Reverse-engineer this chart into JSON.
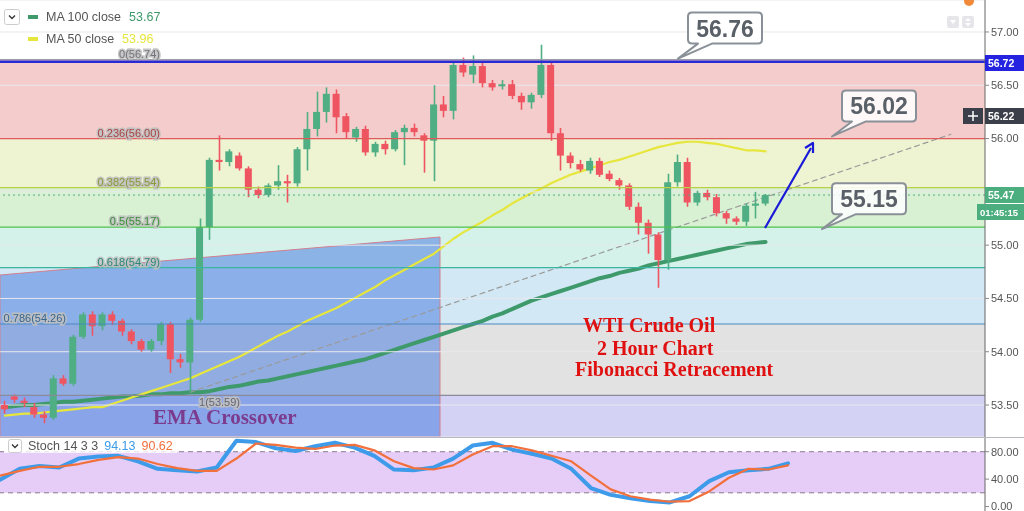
{
  "chart_data": [
    {
      "type": "candlestick",
      "title": "WTI Crude Oil",
      "subtitle": "2 Hour Chart",
      "categories": [
        null,
        null,
        null,
        null,
        null,
        null,
        null,
        null,
        null,
        null,
        null,
        null,
        null,
        null,
        null,
        null,
        null,
        null,
        null,
        null,
        null,
        null,
        null,
        null,
        null,
        null,
        null,
        null,
        null,
        null,
        null,
        null,
        null,
        null,
        null,
        null,
        null,
        null,
        null,
        null,
        null,
        null,
        null,
        null,
        null,
        null,
        null,
        null,
        null,
        null,
        null,
        null,
        null,
        null,
        null,
        null,
        null,
        null,
        null,
        null,
        null,
        null,
        null,
        null,
        null,
        null,
        null,
        null,
        null,
        null,
        null,
        null,
        null,
        null,
        null,
        null,
        null,
        null,
        null,
        null,
        null,
        null,
        null,
        null,
        null,
        null,
        null,
        null,
        null,
        null,
        null,
        null,
        null,
        null,
        null,
        null,
        null,
        null,
        null,
        null,
        null
      ],
      "ohlc": [
        [
          53.5,
          53.54,
          53.42,
          53.46
        ],
        [
          53.58,
          53.6,
          53.52,
          53.55
        ],
        [
          53.54,
          53.57,
          53.48,
          53.52
        ],
        [
          53.48,
          53.52,
          53.38,
          53.41
        ],
        [
          53.41,
          53.44,
          53.33,
          53.38
        ],
        [
          53.38,
          53.78,
          53.36,
          53.75
        ],
        [
          53.75,
          53.78,
          53.68,
          53.7
        ],
        [
          53.7,
          54.16,
          53.68,
          54.14
        ],
        [
          54.14,
          54.37,
          54.12,
          54.35
        ],
        [
          54.35,
          54.38,
          54.15,
          54.24
        ],
        [
          54.24,
          54.37,
          54.2,
          54.35
        ],
        [
          54.35,
          54.38,
          54.25,
          54.29
        ],
        [
          54.29,
          54.31,
          54.15,
          54.19
        ],
        [
          54.19,
          54.21,
          54.07,
          54.1
        ],
        [
          54.1,
          54.12,
          54.0,
          54.02
        ],
        [
          54.02,
          54.12,
          54.0,
          54.1
        ],
        [
          54.1,
          54.28,
          54.06,
          54.26
        ],
        [
          54.26,
          54.28,
          53.8,
          53.93
        ],
        [
          53.93,
          53.98,
          53.85,
          53.9
        ],
        [
          53.9,
          54.32,
          53.62,
          54.3
        ],
        [
          54.3,
          55.25,
          54.28,
          55.17
        ],
        [
          55.17,
          55.82,
          55.05,
          55.8
        ],
        [
          55.8,
          56.03,
          55.7,
          55.78
        ],
        [
          55.78,
          55.9,
          55.74,
          55.88
        ],
        [
          55.84,
          55.87,
          55.7,
          55.72
        ],
        [
          55.72,
          55.74,
          55.45,
          55.52
        ],
        [
          55.52,
          55.55,
          55.44,
          55.47
        ],
        [
          55.47,
          55.58,
          55.45,
          55.56
        ],
        [
          55.56,
          55.75,
          55.52,
          55.6
        ],
        [
          55.6,
          55.66,
          55.4,
          55.58
        ],
        [
          55.58,
          55.92,
          55.55,
          55.9
        ],
        [
          55.9,
          56.25,
          55.7,
          56.09
        ],
        [
          56.09,
          56.44,
          56.02,
          56.25
        ],
        [
          56.25,
          56.48,
          56.15,
          56.42
        ],
        [
          56.42,
          56.46,
          56.05,
          56.2
        ],
        [
          56.21,
          56.24,
          56.0,
          56.06
        ],
        [
          56.01,
          56.11,
          55.97,
          56.09
        ],
        [
          56.09,
          56.12,
          55.84,
          55.87
        ],
        [
          55.87,
          55.97,
          55.83,
          55.95
        ],
        [
          55.95,
          55.98,
          55.85,
          55.9
        ],
        [
          55.9,
          56.08,
          55.88,
          56.06
        ],
        [
          56.06,
          56.13,
          55.75,
          56.1
        ],
        [
          56.1,
          56.14,
          56.02,
          56.06
        ],
        [
          56.03,
          56.05,
          55.68,
          55.98
        ],
        [
          55.98,
          56.5,
          55.6,
          56.32
        ],
        [
          56.32,
          56.4,
          56.2,
          56.26
        ],
        [
          56.26,
          56.72,
          56.18,
          56.69
        ],
        [
          56.69,
          56.76,
          56.58,
          56.62
        ],
        [
          56.6,
          56.78,
          56.52,
          56.68
        ],
        [
          56.68,
          56.72,
          56.48,
          56.52
        ],
        [
          56.52,
          56.55,
          56.45,
          56.48
        ],
        [
          56.49,
          56.55,
          56.46,
          56.51
        ],
        [
          56.51,
          56.55,
          56.37,
          56.4
        ],
        [
          56.4,
          56.43,
          56.27,
          56.34
        ],
        [
          56.34,
          56.43,
          56.28,
          56.41
        ],
        [
          56.41,
          56.88,
          56.38,
          56.69
        ],
        [
          56.69,
          56.72,
          55.98,
          56.05
        ],
        [
          56.05,
          56.1,
          55.7,
          55.84
        ],
        [
          55.84,
          55.87,
          55.72,
          55.77
        ],
        [
          55.76,
          55.8,
          55.69,
          55.71
        ],
        [
          55.7,
          55.82,
          55.67,
          55.79
        ],
        [
          55.79,
          55.82,
          55.64,
          55.66
        ],
        [
          55.67,
          55.7,
          55.6,
          55.62
        ],
        [
          55.61,
          55.63,
          55.52,
          55.56
        ],
        [
          55.56,
          55.58,
          55.33,
          55.36
        ],
        [
          55.36,
          55.4,
          55.1,
          55.21
        ],
        [
          55.21,
          55.24,
          54.92,
          55.1
        ],
        [
          55.1,
          55.12,
          54.6,
          54.86
        ],
        [
          54.86,
          55.67,
          54.77,
          55.59
        ],
        [
          55.59,
          55.85,
          55.55,
          55.78
        ],
        [
          55.78,
          55.82,
          55.36,
          55.4
        ],
        [
          55.4,
          55.51,
          55.37,
          55.49
        ],
        [
          55.49,
          55.52,
          55.42,
          55.45
        ],
        [
          55.45,
          55.48,
          55.27,
          55.3
        ],
        [
          55.3,
          55.32,
          55.2,
          55.25
        ],
        [
          55.25,
          55.27,
          55.19,
          55.22
        ],
        [
          55.22,
          55.39,
          55.18,
          55.37
        ],
        [
          55.37,
          55.5,
          55.25,
          55.39
        ],
        [
          55.39,
          55.48,
          55.37,
          55.47
        ],
        null,
        null,
        null,
        null,
        null,
        null,
        null,
        null,
        null,
        null,
        null,
        null,
        null,
        null,
        null,
        null,
        null,
        null,
        null,
        null,
        null,
        null
      ],
      "series": [
        {
          "name": "MA 100 close",
          "type": "line",
          "color": "#3f9a6b",
          "values": [
            53.48,
            53.49,
            53.5,
            53.5,
            53.51,
            53.52,
            53.53,
            53.53,
            53.54,
            53.55,
            53.56,
            53.57,
            53.58,
            53.58,
            53.59,
            53.6,
            53.6,
            53.61,
            53.61,
            53.62,
            53.62,
            53.63,
            53.65,
            53.67,
            53.68,
            53.7,
            53.72,
            53.73,
            53.75,
            53.77,
            53.79,
            53.81,
            53.83,
            53.85,
            53.87,
            53.89,
            53.91,
            53.93,
            53.96,
            53.99,
            54.02,
            54.05,
            54.08,
            54.11,
            54.14,
            54.17,
            54.2,
            54.23,
            54.26,
            54.29,
            54.33,
            54.36,
            54.4,
            54.44,
            54.48,
            54.51,
            54.54,
            54.57,
            54.6,
            54.63,
            54.66,
            54.69,
            54.71,
            54.74,
            54.76,
            54.78,
            54.81,
            54.83,
            54.85,
            54.87,
            54.89,
            54.91,
            54.93,
            54.95,
            54.97,
            54.99,
            55.01,
            55.02,
            55.03,
            null,
            null,
            null,
            null,
            null,
            null,
            null,
            null,
            null,
            null,
            null,
            null,
            null,
            null,
            null,
            null,
            null,
            null,
            null,
            null,
            null,
            null
          ]
        },
        {
          "name": "MA 50 close",
          "type": "line",
          "color": "#e6e63c",
          "values": [
            53.4,
            53.41,
            53.42,
            53.42,
            53.43,
            53.44,
            53.45,
            53.46,
            53.47,
            53.48,
            53.48,
            53.51,
            53.54,
            53.57,
            53.6,
            53.63,
            53.66,
            53.69,
            53.72,
            53.75,
            53.79,
            53.83,
            53.87,
            53.91,
            53.95,
            54.0,
            54.05,
            54.1,
            54.15,
            54.19,
            54.24,
            54.29,
            54.33,
            54.37,
            54.41,
            54.46,
            54.51,
            54.56,
            54.61,
            54.67,
            54.72,
            54.77,
            54.82,
            54.87,
            54.92,
            54.99,
            55.06,
            55.12,
            55.17,
            55.22,
            55.28,
            55.33,
            55.39,
            55.44,
            55.49,
            55.53,
            55.58,
            55.62,
            55.66,
            55.69,
            55.72,
            55.75,
            55.78,
            55.8,
            55.83,
            55.86,
            55.89,
            55.92,
            55.94,
            55.96,
            55.97,
            55.97,
            55.96,
            55.95,
            55.93,
            55.91,
            55.89,
            55.89,
            55.88,
            null,
            null,
            null,
            null,
            null,
            null,
            null,
            null,
            null,
            null,
            null,
            null,
            null,
            null,
            null,
            null,
            null,
            null,
            null,
            null,
            null,
            null
          ]
        },
        {
          "type": "line",
          "color": "#9a9a9a",
          "line_style": "dashed",
          "values": [
            null,
            null,
            null,
            null,
            null,
            null,
            null,
            null,
            null,
            null,
            null,
            null,
            null,
            null,
            null,
            null,
            null,
            null,
            null,
            53.62,
            null,
            null,
            null,
            null,
            null,
            null,
            null,
            null,
            null,
            null,
            null,
            null,
            null,
            null,
            null,
            null,
            null,
            null,
            null,
            null,
            null,
            null,
            null,
            null,
            null,
            null,
            null,
            null,
            null,
            null,
            null,
            null,
            null,
            null,
            null,
            null,
            null,
            null,
            null,
            null,
            null,
            null,
            null,
            null,
            null,
            null,
            null,
            null,
            null,
            null,
            null,
            null,
            null,
            null,
            null,
            null,
            null,
            null,
            null,
            null,
            null,
            null,
            null,
            null,
            null,
            null,
            null,
            null,
            null,
            null,
            null,
            null,
            null,
            null,
            null,
            null,
            null,
            56.04,
            null,
            null,
            null
          ]
        }
      ],
      "ylim": [
        53.2,
        57.3
      ],
      "yticks": [
        {
          "value": 53.5,
          "label": "53.50"
        },
        {
          "value": 54,
          "label": "54.00"
        },
        {
          "value": 54.5,
          "label": "54.50"
        },
        {
          "value": 55,
          "label": "55.00"
        },
        {
          "value": 55.5,
          "label": null
        },
        {
          "value": 56,
          "label": "56.00"
        },
        {
          "value": 56.5,
          "label": "56.50"
        },
        {
          "value": 57,
          "label": "57.00"
        }
      ],
      "grid": "y",
      "legend": "top left",
      "marker": "none",
      "bands": [
        {
          "axis": "y",
          "from": 56.0,
          "to": 56.74,
          "color": "#f5cccc"
        },
        {
          "axis": "y",
          "from": 55.54,
          "to": 56.0,
          "color": "#eef3d2"
        },
        {
          "axis": "y",
          "from": 55.17,
          "to": 55.54,
          "color": "#d8f1d3"
        },
        {
          "axis": "y",
          "from": 54.79,
          "to": 55.17,
          "color": "#d4f2ea"
        },
        {
          "axis": "y",
          "from": 54.26,
          "to": 54.79,
          "color": "#d2e8f4"
        },
        {
          "axis": "y",
          "from": 53.59,
          "to": 54.26,
          "color": "#e2e2e2"
        },
        {
          "axis": "y",
          "from": 53.2,
          "to": 53.59,
          "color": "#d3d1f4"
        }
      ],
      "ref_lines": [
        {
          "axis": "y",
          "value": 56.74,
          "label": "0(56.74)",
          "color": "#9a9aa8"
        },
        {
          "axis": "y",
          "value": 56.0,
          "label": "0.236(56.00)",
          "color": "#e05a5a"
        },
        {
          "axis": "y",
          "value": 55.54,
          "label": "0.382(55.54)",
          "color": "#b8cf4a"
        },
        {
          "axis": "y",
          "value": 55.17,
          "label": "0.5(55.17)",
          "color": "#4cc04c"
        },
        {
          "axis": "y",
          "value": 54.79,
          "label": "0.618(54.79)",
          "color": "#3ab5a0"
        },
        {
          "axis": "y",
          "value": 54.26,
          "label": "0.786(54.26)",
          "color": "#4a88c0"
        },
        {
          "axis": "y",
          "value": 53.59,
          "label": "1(53.59)",
          "color": "#8a8a9a"
        },
        {
          "axis": "y",
          "value": 56.72,
          "color": "#2a2ad4"
        },
        {
          "axis": "y",
          "value": 55.47,
          "color": "#5aa88a",
          "line_style": "dotted"
        }
      ],
      "annotations": [
        "53.67",
        "53.96",
        "EMA Crossover",
        "Fibonacci Retracement",
        {
          "text": "56.76",
          "y": 56.75
        },
        {
          "text": "56.02",
          "y": 56.02
        },
        {
          "text": "55.15",
          "y": 55.15
        },
        "56.72",
        "56.22",
        "55.47",
        "01:45:15"
      ]
    },
    {
      "type": "line",
      "legend_title": "Stoch 14 3 3",
      "legend": "top left",
      "marker": "none",
      "categories": [
        null,
        null,
        null,
        null,
        null,
        null,
        null,
        null,
        null,
        null,
        null,
        null,
        null,
        null,
        null,
        null,
        null,
        null,
        null,
        null,
        null,
        null,
        null,
        null,
        null,
        null,
        null,
        null,
        null,
        null,
        null,
        null,
        null,
        null,
        null,
        null,
        null,
        null,
        null,
        null,
        null,
        null,
        null,
        null,
        null,
        null,
        null,
        null,
        null,
        null,
        null
      ],
      "series": [
        {
          "name": "94.13",
          "color": "#3d9be9",
          "values": [
            39,
            55,
            59,
            57,
            70,
            73,
            74,
            66,
            55,
            53,
            51,
            57,
            96,
            94,
            85,
            81,
            88,
            93,
            86,
            74,
            54,
            53,
            57,
            70,
            89,
            93,
            83,
            77,
            70,
            55,
            27,
            17,
            12,
            8,
            6,
            15,
            37,
            50,
            53,
            55,
            63,
            null,
            null,
            null,
            null,
            null,
            null,
            null,
            null,
            null,
            null
          ]
        },
        {
          "name": "90.62",
          "color": "#f2703c",
          "values": [
            45,
            52,
            58,
            58,
            62,
            68,
            72,
            70,
            62,
            56,
            52,
            52,
            70,
            92,
            90,
            86,
            84,
            89,
            90,
            82,
            66,
            56,
            54,
            60,
            76,
            88,
            88,
            82,
            74,
            66,
            45,
            25,
            15,
            10,
            7,
            8,
            22,
            42,
            55,
            54,
            60,
            null,
            null,
            null,
            null,
            null,
            null,
            null,
            null,
            null,
            null
          ]
        }
      ],
      "ylim": [
        -8,
        100
      ],
      "yticks": [
        {
          "value": 0,
          "label": "0.00"
        },
        {
          "value": 40,
          "label": "40.00"
        },
        {
          "value": 80,
          "label": "80.00"
        }
      ],
      "bands": [
        {
          "axis": "y",
          "from": 20,
          "to": 80,
          "color": "#e6cdf7"
        }
      ],
      "ref_lines": [
        {
          "axis": "y",
          "value": 80,
          "color": "#8a7a90",
          "line_style": "dashed"
        },
        {
          "axis": "y",
          "value": 20,
          "color": "#8a7a90",
          "line_style": "dashed"
        }
      ]
    }
  ]
}
